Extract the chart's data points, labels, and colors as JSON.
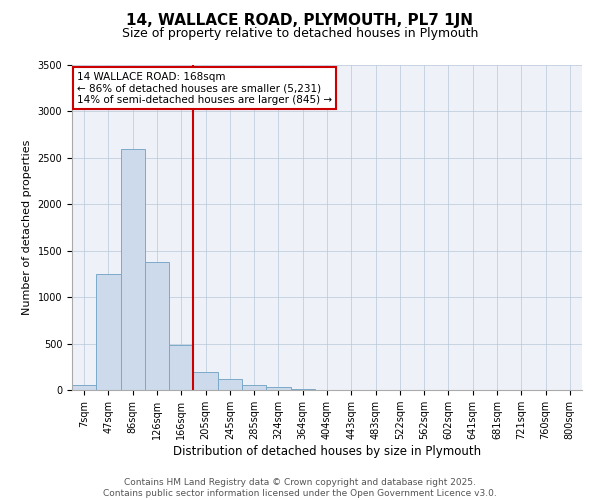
{
  "title1": "14, WALLACE ROAD, PLYMOUTH, PL7 1JN",
  "title2": "Size of property relative to detached houses in Plymouth",
  "xlabel": "Distribution of detached houses by size in Plymouth",
  "ylabel": "Number of detached properties",
  "categories": [
    "7sqm",
    "47sqm",
    "86sqm",
    "126sqm",
    "166sqm",
    "205sqm",
    "245sqm",
    "285sqm",
    "324sqm",
    "364sqm",
    "404sqm",
    "443sqm",
    "483sqm",
    "522sqm",
    "562sqm",
    "602sqm",
    "641sqm",
    "681sqm",
    "721sqm",
    "760sqm",
    "800sqm"
  ],
  "values": [
    50,
    1250,
    2600,
    1380,
    490,
    195,
    115,
    55,
    30,
    10,
    5,
    0,
    0,
    0,
    0,
    0,
    0,
    0,
    0,
    0,
    0
  ],
  "bar_color": "#ccdaeb",
  "bar_edge_color": "#7aaac8",
  "vline_x": 4.5,
  "vline_color": "#cc0000",
  "annotation_text": "14 WALLACE ROAD: 168sqm\n← 86% of detached houses are smaller (5,231)\n14% of semi-detached houses are larger (845) →",
  "annotation_box_color": "#ffffff",
  "annotation_box_edge": "#cc0000",
  "ylim": [
    0,
    3500
  ],
  "yticks": [
    0,
    500,
    1000,
    1500,
    2000,
    2500,
    3000,
    3500
  ],
  "bg_color": "#eef2f8",
  "footer": "Contains HM Land Registry data © Crown copyright and database right 2025.\nContains public sector information licensed under the Open Government Licence v3.0.",
  "title1_fontsize": 11,
  "title2_fontsize": 9,
  "xlabel_fontsize": 8.5,
  "ylabel_fontsize": 8,
  "annotation_fontsize": 7.5,
  "footer_fontsize": 6.5,
  "tick_fontsize": 7
}
